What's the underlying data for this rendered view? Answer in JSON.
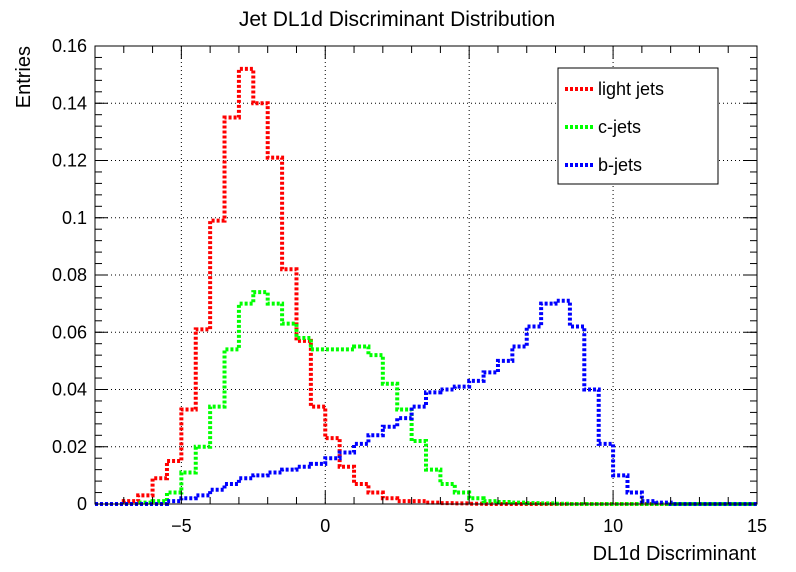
{
  "chart_data": {
    "type": "line",
    "title": "Jet DL1d Discriminant Distribution",
    "xlabel": "DL1d Discriminant",
    "ylabel": "Entries",
    "xlim": [
      -8,
      15
    ],
    "ylim": [
      0,
      0.16
    ],
    "x_ticks": [
      -5,
      0,
      5,
      10,
      15
    ],
    "x_tick_labels": [
      "−5",
      "0",
      "5",
      "10",
      "15"
    ],
    "y_ticks": [
      0,
      0.02,
      0.04,
      0.06,
      0.08,
      0.1,
      0.12,
      0.14,
      0.16
    ],
    "y_tick_labels": [
      "0",
      "0.02",
      "0.04",
      "0.06",
      "0.08",
      "0.1",
      "0.12",
      "0.14",
      "0.16"
    ],
    "grid": true,
    "legend_position": "top-right",
    "line_style": "dotted step histogram",
    "bin_edges": [
      -8,
      -7.5,
      -7,
      -6.5,
      -6,
      -5.5,
      -5,
      -4.5,
      -4,
      -3.5,
      -3,
      -2.5,
      -2,
      -1.5,
      -1,
      -0.5,
      0,
      0.5,
      1,
      1.5,
      2,
      2.5,
      3,
      3.5,
      4,
      4.5,
      5,
      5.5,
      6,
      6.5,
      7,
      7.5,
      8,
      8.5,
      9,
      9.5,
      10,
      10.5,
      11,
      11.5,
      12,
      12.5,
      13,
      13.5,
      14,
      14.5,
      15
    ],
    "series": [
      {
        "name": "light jets",
        "color": "#ff0000",
        "values": [
          0,
          0,
          0.001,
          0.003,
          0.009,
          0.015,
          0.033,
          0.061,
          0.099,
          0.135,
          0.152,
          0.14,
          0.121,
          0.082,
          0.057,
          0.034,
          0.023,
          0.013,
          0.007,
          0.004,
          0.002,
          0.001,
          0.001,
          0.0005,
          0.0003,
          0.0002,
          0.0001,
          0,
          0,
          0,
          0,
          0,
          0,
          0,
          0,
          0,
          0,
          0,
          0,
          0,
          0,
          0,
          0,
          0,
          0,
          0
        ]
      },
      {
        "name": "c-jets",
        "color": "#00ff00",
        "values": [
          0,
          0,
          0,
          0.0005,
          0.001,
          0.004,
          0.011,
          0.02,
          0.034,
          0.054,
          0.07,
          0.074,
          0.07,
          0.063,
          0.058,
          0.054,
          0.054,
          0.054,
          0.055,
          0.052,
          0.042,
          0.033,
          0.022,
          0.012,
          0.007,
          0.004,
          0.002,
          0.001,
          0.0007,
          0.0005,
          0.0003,
          0.0002,
          0.0001,
          0,
          0,
          0,
          0,
          0,
          0,
          0,
          0,
          0,
          0,
          0,
          0,
          0
        ]
      },
      {
        "name": "b-jets",
        "color": "#0000ff",
        "values": [
          0,
          0,
          0,
          0,
          0,
          0.001,
          0.002,
          0.003,
          0.005,
          0.007,
          0.009,
          0.01,
          0.011,
          0.012,
          0.013,
          0.014,
          0.016,
          0.018,
          0.021,
          0.024,
          0.027,
          0.03,
          0.034,
          0.039,
          0.04,
          0.041,
          0.043,
          0.046,
          0.05,
          0.055,
          0.062,
          0.07,
          0.071,
          0.062,
          0.04,
          0.021,
          0.01,
          0.004,
          0.001,
          0.0005,
          0,
          0,
          0,
          0,
          0,
          0
        ]
      }
    ]
  }
}
